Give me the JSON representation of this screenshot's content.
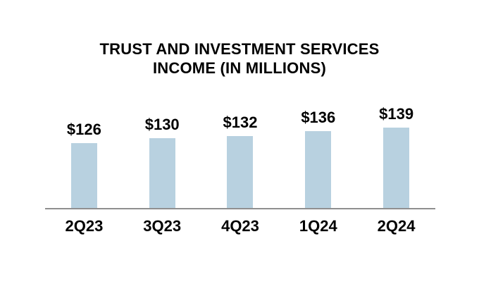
{
  "chart_data": {
    "type": "bar",
    "title": "TRUST AND INVESTMENT SERVICES INCOME (IN MILLIONS)",
    "title_lines": [
      "TRUST AND INVESTMENT SERVICES",
      "INCOME (IN MILLIONS)"
    ],
    "categories": [
      "2Q23",
      "3Q23",
      "4Q23",
      "1Q24",
      "2Q24"
    ],
    "values": [
      126,
      130,
      132,
      136,
      139
    ],
    "value_labels": [
      "$126",
      "$130",
      "$132",
      "$136",
      "$139"
    ],
    "xlabel": "",
    "ylabel": "",
    "ylim": [
      70,
      160
    ],
    "grid": false,
    "legend": false,
    "bar_color": "#b8d1e0",
    "axis_line_color": "#8f8f8f",
    "text_color": "#000000",
    "background_color": "#ffffff"
  }
}
